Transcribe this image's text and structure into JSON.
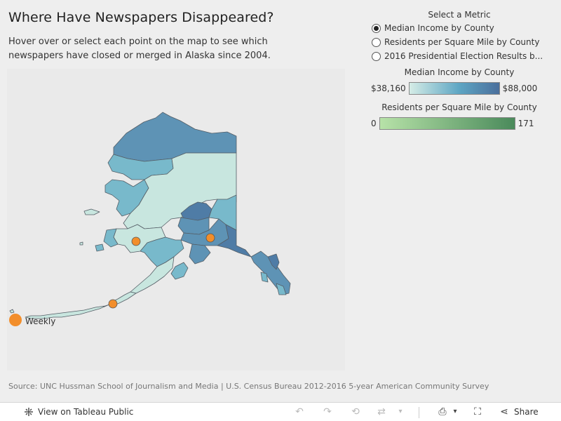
{
  "header": {
    "title": "Where Have Newspapers Disappeared?",
    "subtitle": "Hover over or select each point on the map to see which newspapers have closed or merged in Alaska since 2004."
  },
  "map": {
    "region": "Alaska",
    "legend_weekly_label": "Weekly",
    "marker_color": "#f28e2b",
    "newspaper_markers": [
      {
        "type": "Weekly",
        "location": "Bethel area"
      },
      {
        "type": "Weekly",
        "location": "Anchorage / Mat-Su area"
      },
      {
        "type": "Weekly",
        "location": "Aleutians East"
      }
    ],
    "colors": {
      "land_light": "#c8e6df",
      "land_mid": "#78b9cb",
      "land_dark": "#5e93b5",
      "land_darker": "#4f7ca6",
      "stroke": "#555e66"
    }
  },
  "controls": {
    "select_metric_title": "Select a Metric",
    "options": [
      {
        "label": "Median Income by County",
        "selected": true
      },
      {
        "label": "Residents per Square Mile by County",
        "selected": false
      },
      {
        "label": "2016 Presidential Election Results b...",
        "selected": false
      }
    ],
    "income_legend": {
      "title": "Median Income by County",
      "min_label": "$38,160",
      "max_label": "$88,000",
      "color_low": "#d5ece6",
      "color_high": "#4a6f9c"
    },
    "density_legend": {
      "title": "Residents per Square Mile by County",
      "min_label": "0",
      "max_label": "171",
      "color_low": "#b7e2a8",
      "color_high": "#4a8a5b"
    }
  },
  "source": "Source: UNC Hussman School of Journalism and Media  |  U.S. Census Bureau 2012-2016 5-year American Community Survey",
  "footer": {
    "view_label": "View on Tableau Public",
    "share_label": "Share",
    "icons": [
      "tableau-logo-icon",
      "undo-icon",
      "redo-icon",
      "revert-icon",
      "refresh-icon",
      "pause-dropdown-icon",
      "download-icon",
      "fullscreen-icon",
      "share-icon"
    ]
  }
}
